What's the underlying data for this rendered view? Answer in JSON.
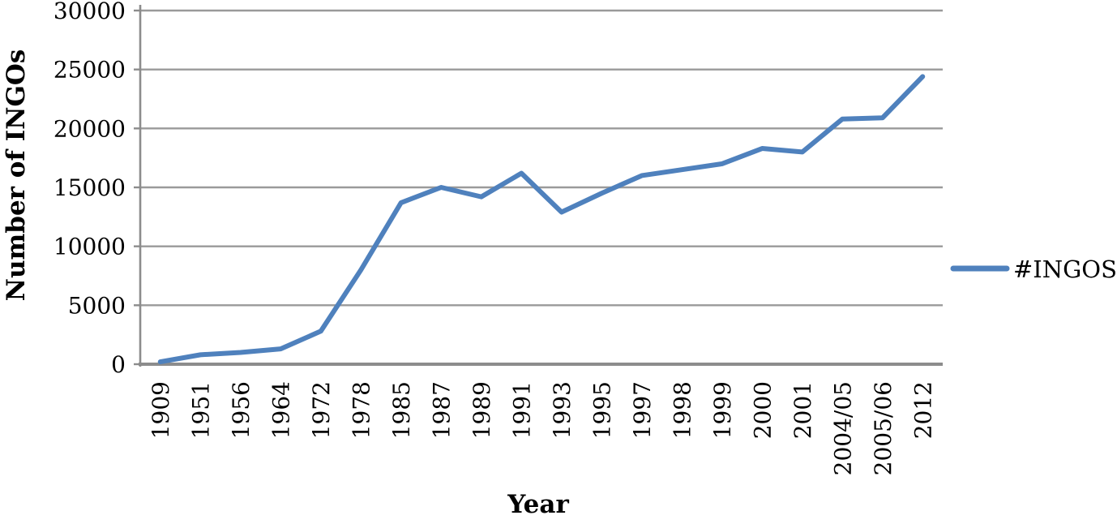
{
  "chart_data": {
    "type": "line",
    "title": "",
    "xlabel": "Year",
    "ylabel": "Number of INGOs",
    "categories": [
      "1909",
      "1951",
      "1956",
      "1964",
      "1972",
      "1978",
      "1985",
      "1987",
      "1989",
      "1991",
      "1993",
      "1995",
      "1997",
      "1998",
      "1999",
      "2000",
      "2001",
      "2004/05",
      "2005/06",
      "2012"
    ],
    "series": [
      {
        "name": "#INGOS",
        "values": [
          200,
          800,
          1000,
          1300,
          2800,
          8000,
          13700,
          15000,
          14200,
          16200,
          12900,
          14500,
          16000,
          16500,
          17000,
          18300,
          18000,
          20800,
          20900,
          24400
        ]
      }
    ],
    "ylim": [
      0,
      30000
    ],
    "yticks": [
      0,
      5000,
      10000,
      15000,
      20000,
      25000,
      30000
    ],
    "grid": "horizontal",
    "legend_position": "right",
    "colors": {
      "line": "#4F81BD",
      "gridline": "#9A9A9A",
      "axis": "#8C8C8C",
      "text": "#000000",
      "background": "#FFFFFF"
    }
  }
}
